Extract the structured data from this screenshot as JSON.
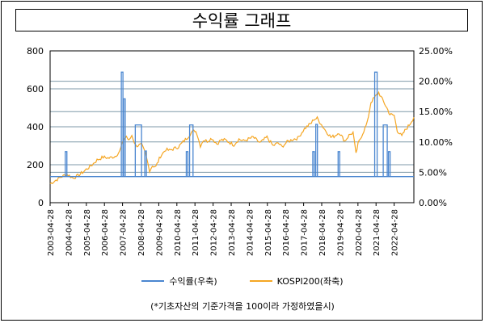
{
  "chart_data": {
    "type": "line",
    "title": "수익률 그래프",
    "x_ticks": [
      "2003-04-28",
      "2004-04-28",
      "2005-04-28",
      "2006-04-28",
      "2007-04-28",
      "2008-04-28",
      "2009-04-28",
      "2010-04-28",
      "2011-04-28",
      "2012-04-28",
      "2013-04-28",
      "2014-04-28",
      "2015-04-28",
      "2016-04-28",
      "2017-04-28",
      "2018-04-28",
      "2019-04-28",
      "2020-04-28",
      "2021-04-28",
      "2022-04-28"
    ],
    "x_range": [
      "2003-04-28",
      "2023-05-31"
    ],
    "y_left": {
      "range": [
        0,
        800
      ],
      "ticks": [
        "0",
        "200",
        "400",
        "600",
        "800"
      ]
    },
    "y_right": {
      "range": [
        0,
        25
      ],
      "ticks": [
        "0.00%",
        "5.00%",
        "10.00%",
        "15.00%",
        "20.00%",
        "25.00%"
      ]
    },
    "grid": "horizontal",
    "legend_position": "bottom",
    "series": [
      {
        "name": "수익률(우축)",
        "axis": "right",
        "color": "#4a86d0",
        "baseline": 4.3,
        "spikes": [
          {
            "date": "2004-03-15",
            "value": 8.4
          },
          {
            "date": "2007-04-20",
            "value": 21.5
          },
          {
            "date": "2007-06-05",
            "value": 17.1
          },
          {
            "date": "2008-01-10",
            "start": "2008-01-10",
            "end": "2008-05-15",
            "value": 12.8
          },
          {
            "date": "2008-08-05",
            "value": 8.5
          },
          {
            "date": "2010-11-20",
            "value": 8.4
          },
          {
            "date": "2011-01-10",
            "start": "2011-01-10",
            "end": "2011-03-20",
            "value": 12.8
          },
          {
            "date": "2017-11-15",
            "value": 8.4
          },
          {
            "date": "2018-01-15",
            "value": 12.9
          },
          {
            "date": "2019-04-10",
            "value": 8.4
          },
          {
            "date": "2021-04-01",
            "start": "2021-04-01",
            "end": "2021-05-20",
            "value": 21.5
          },
          {
            "date": "2021-09-20",
            "start": "2021-09-20",
            "end": "2021-12-10",
            "value": 12.8
          },
          {
            "date": "2022-01-20",
            "value": 8.4
          }
        ]
      },
      {
        "name": "KOSPI200(좌축)",
        "axis": "left",
        "color": "#f5a623",
        "points": [
          [
            "2003-04-28",
            100
          ],
          [
            "2003-08-01",
            115
          ],
          [
            "2003-12-01",
            135
          ],
          [
            "2004-04-01",
            150
          ],
          [
            "2004-08-01",
            130
          ],
          [
            "2004-12-01",
            145
          ],
          [
            "2005-04-01",
            170
          ],
          [
            "2005-08-01",
            195
          ],
          [
            "2005-12-01",
            225
          ],
          [
            "2006-04-01",
            240
          ],
          [
            "2006-08-01",
            235
          ],
          [
            "2006-12-01",
            245
          ],
          [
            "2007-03-01",
            270
          ],
          [
            "2007-05-15",
            330
          ],
          [
            "2007-07-15",
            350
          ],
          [
            "2007-09-01",
            325
          ],
          [
            "2007-11-01",
            355
          ],
          [
            "2008-01-20",
            300
          ],
          [
            "2008-05-15",
            305
          ],
          [
            "2008-08-01",
            260
          ],
          [
            "2008-10-25",
            170
          ],
          [
            "2008-12-20",
            195
          ],
          [
            "2009-03-01",
            190
          ],
          [
            "2009-06-01",
            245
          ],
          [
            "2009-09-15",
            280
          ],
          [
            "2009-12-01",
            275
          ],
          [
            "2010-03-01",
            285
          ],
          [
            "2010-06-01",
            295
          ],
          [
            "2010-09-01",
            320
          ],
          [
            "2010-12-01",
            345
          ],
          [
            "2011-02-15",
            370
          ],
          [
            "2011-04-28",
            380
          ],
          [
            "2011-06-01",
            370
          ],
          [
            "2011-08-15",
            300
          ],
          [
            "2011-10-15",
            330
          ],
          [
            "2012-01-01",
            325
          ],
          [
            "2012-04-01",
            340
          ],
          [
            "2012-07-15",
            310
          ],
          [
            "2012-10-01",
            330
          ],
          [
            "2013-01-01",
            330
          ],
          [
            "2013-06-20",
            305
          ],
          [
            "2013-10-01",
            335
          ],
          [
            "2014-01-01",
            325
          ],
          [
            "2014-07-15",
            345
          ],
          [
            "2014-12-01",
            315
          ],
          [
            "2015-04-20",
            345
          ],
          [
            "2015-08-20",
            300
          ],
          [
            "2015-12-01",
            315
          ],
          [
            "2016-02-12",
            295
          ],
          [
            "2016-06-01",
            320
          ],
          [
            "2016-10-01",
            335
          ],
          [
            "2017-01-01",
            340
          ],
          [
            "2017-05-15",
            390
          ],
          [
            "2017-10-01",
            420
          ],
          [
            "2017-11-20",
            440
          ],
          [
            "2018-01-29",
            445
          ],
          [
            "2018-04-01",
            420
          ],
          [
            "2018-07-01",
            385
          ],
          [
            "2018-10-30",
            345
          ],
          [
            "2019-01-01",
            350
          ],
          [
            "2019-04-15",
            370
          ],
          [
            "2019-08-06",
            325
          ],
          [
            "2019-11-01",
            355
          ],
          [
            "2020-01-20",
            370
          ],
          [
            "2020-03-19",
            255
          ],
          [
            "2020-05-01",
            310
          ],
          [
            "2020-08-01",
            365
          ],
          [
            "2020-11-01",
            420
          ],
          [
            "2021-01-15",
            530
          ],
          [
            "2021-03-01",
            545
          ],
          [
            "2021-06-20",
            580
          ],
          [
            "2021-09-01",
            545
          ],
          [
            "2021-12-01",
            500
          ],
          [
            "2022-02-01",
            465
          ],
          [
            "2022-04-28",
            460
          ],
          [
            "2022-07-01",
            380
          ],
          [
            "2022-09-30",
            350
          ],
          [
            "2022-12-01",
            380
          ],
          [
            "2023-03-01",
            410
          ],
          [
            "2023-05-31",
            450
          ]
        ]
      }
    ],
    "footnote": "(*기초자산의 기준가격을 100이라 가정하였을시)"
  }
}
